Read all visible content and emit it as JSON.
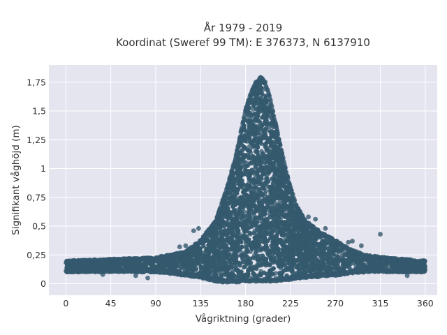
{
  "chart_data": {
    "type": "scatter",
    "title_lines": [
      "År 1979 - 2019",
      "Koordinat (Sweref 99 TM): E 376373, N 6137910"
    ],
    "xlabel": "Vågriktning (grader)",
    "ylabel": "Signifikant våghöjd (m)",
    "xlim": [
      -17,
      372
    ],
    "ylim": [
      -0.1,
      1.9
    ],
    "x_ticks": [
      0,
      45,
      90,
      135,
      180,
      225,
      270,
      315,
      360
    ],
    "x_tick_labels": [
      "0",
      "45",
      "90",
      "135",
      "180",
      "225",
      "270",
      "315",
      "360"
    ],
    "y_ticks": [
      0,
      0.25,
      0.5,
      0.75,
      1,
      1.25,
      1.5,
      1.75
    ],
    "y_tick_labels": [
      "0",
      "0,25",
      "0,5",
      "0,75",
      "1",
      "1,25",
      "1,5",
      "1,75"
    ],
    "grid": true,
    "legend": "none",
    "marker_color": "#34596e",
    "background_color": "#e5e5f0",
    "envelope": {
      "x": [
        0,
        30,
        60,
        90,
        120,
        135,
        150,
        160,
        170,
        180,
        185,
        190,
        195,
        200,
        205,
        210,
        220,
        230,
        240,
        255,
        270,
        285,
        300,
        330,
        360
      ],
      "y_min": [
        0.1,
        0.1,
        0.1,
        0.1,
        0.07,
        0.05,
        0.02,
        0.01,
        0.01,
        0.02,
        0.02,
        0.02,
        0.02,
        0.02,
        0.02,
        0.02,
        0.03,
        0.04,
        0.05,
        0.06,
        0.07,
        0.09,
        0.1,
        0.1,
        0.1
      ],
      "y_max": [
        0.2,
        0.21,
        0.22,
        0.23,
        0.28,
        0.38,
        0.55,
        0.8,
        1.1,
        1.52,
        1.65,
        1.75,
        1.8,
        1.75,
        1.6,
        1.4,
        1.0,
        0.7,
        0.55,
        0.45,
        0.38,
        0.3,
        0.25,
        0.22,
        0.2
      ]
    },
    "outliers": [
      {
        "x": 315,
        "y": 0.43
      },
      {
        "x": 243,
        "y": 0.58
      },
      {
        "x": 250,
        "y": 0.56
      },
      {
        "x": 260,
        "y": 0.48
      },
      {
        "x": 128,
        "y": 0.46
      },
      {
        "x": 133,
        "y": 0.48
      },
      {
        "x": 283,
        "y": 0.36
      },
      {
        "x": 287,
        "y": 0.37
      },
      {
        "x": 120,
        "y": 0.33
      },
      {
        "x": 114,
        "y": 0.32
      },
      {
        "x": 82,
        "y": 0.05
      },
      {
        "x": 70,
        "y": 0.07
      },
      {
        "x": 342,
        "y": 0.07
      },
      {
        "x": 37,
        "y": 0.08
      },
      {
        "x": 351,
        "y": 0.13
      },
      {
        "x": 296,
        "y": 0.33
      }
    ]
  }
}
